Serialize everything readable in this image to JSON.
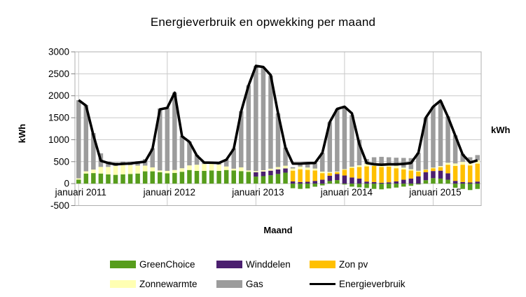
{
  "title": "Energieverbruik en opwekking per maand",
  "axes": {
    "y_left_label": "kWh",
    "y_right_label": "kWh",
    "x_label": "Maand",
    "y_ticks": [
      3000,
      2500,
      2000,
      1500,
      1000,
      500,
      0,
      -500
    ],
    "y_min": -500,
    "y_max": 3000,
    "x_tick_labels": [
      "januari 2011",
      "januari 2012",
      "januari 2013",
      "januari 2014",
      "januari 2015"
    ],
    "x_tick_month_index": [
      0,
      12,
      24,
      36,
      48
    ]
  },
  "colors": {
    "greenchoice": "#579D1C",
    "winddelen": "#4B1F6F",
    "zon_pv": "#FFC000",
    "zonnewarmte": "#FFFFB3",
    "gas": "#9C9C9C",
    "energieverbruik": "#000000",
    "gridline": "#C9C9C9",
    "plot_border": "#AFAFAF",
    "tick": "#808080"
  },
  "legend": {
    "rows": [
      [
        {
          "label": "GreenChoice",
          "color": "#579D1C"
        },
        {
          "label": "Winddelen",
          "color": "#4B1F6F"
        },
        {
          "label": "Zon pv",
          "color": "#FFC000"
        }
      ],
      [
        {
          "label": "Zonnewarmte",
          "color": "#FFFFB3"
        },
        {
          "label": "Gas",
          "color": "#9C9C9C"
        },
        {
          "label": "Energieverbruik",
          "color": "#000000"
        }
      ]
    ]
  },
  "chart_data": {
    "type": "bar",
    "subtype": "stacked-bars-with-line-overlay",
    "title": "Energieverbruik en opwekking per maand",
    "xlabel": "Maand",
    "ylabel": "kWh",
    "ylim": [
      -500,
      3000
    ],
    "grid": true,
    "legend_position": "bottom",
    "categories": [
      "2011-01",
      "2011-02",
      "2011-03",
      "2011-04",
      "2011-05",
      "2011-06",
      "2011-07",
      "2011-08",
      "2011-09",
      "2011-10",
      "2011-11",
      "2011-12",
      "2012-01",
      "2012-02",
      "2012-03",
      "2012-04",
      "2012-05",
      "2012-06",
      "2012-07",
      "2012-08",
      "2012-09",
      "2012-10",
      "2012-11",
      "2012-12",
      "2013-01",
      "2013-02",
      "2013-03",
      "2013-04",
      "2013-05",
      "2013-06",
      "2013-07",
      "2013-08",
      "2013-09",
      "2013-10",
      "2013-11",
      "2013-12",
      "2014-01",
      "2014-02",
      "2014-03",
      "2014-04",
      "2014-05",
      "2014-06",
      "2014-07",
      "2014-08",
      "2014-09",
      "2014-10",
      "2014-11",
      "2014-12",
      "2015-01",
      "2015-02",
      "2015-03",
      "2015-04",
      "2015-05",
      "2015-06",
      "2015-07"
    ],
    "series": [
      {
        "name": "GreenChoice",
        "color": "#579D1C",
        "values": [
          90,
          230,
          240,
          230,
          210,
          200,
          210,
          220,
          230,
          280,
          280,
          260,
          235,
          245,
          270,
          310,
          290,
          290,
          300,
          290,
          310,
          300,
          285,
          270,
          160,
          170,
          190,
          220,
          250,
          -105,
          -120,
          -110,
          -70,
          -40,
          60,
          80,
          -20,
          -68,
          -84,
          -100,
          -120,
          -130,
          -110,
          -90,
          -68,
          -50,
          -20,
          78,
          125,
          115,
          89,
          -94,
          -121,
          -146,
          -121
        ]
      },
      {
        "name": "Winddelen",
        "color": "#4B1F6F",
        "values": [
          0,
          0,
          0,
          0,
          0,
          0,
          0,
          0,
          0,
          0,
          0,
          0,
          0,
          0,
          0,
          0,
          0,
          0,
          0,
          0,
          0,
          0,
          0,
          0,
          100,
          105,
          105,
          105,
          95,
          50,
          37,
          42,
          63,
          89,
          120,
          140,
          185,
          140,
          115,
          47,
          37,
          20,
          30,
          52,
          89,
          115,
          167,
          183,
          162,
          180,
          146,
          63,
          37,
          26,
          47
        ]
      },
      {
        "name": "Zon pv",
        "color": "#FFC000",
        "values": [
          0,
          0,
          0,
          0,
          0,
          0,
          0,
          0,
          0,
          0,
          0,
          0,
          0,
          0,
          0,
          0,
          0,
          0,
          0,
          0,
          0,
          0,
          0,
          0,
          0,
          0,
          0,
          0,
          0,
          245,
          290,
          270,
          235,
          150,
          60,
          40,
          130,
          220,
          262,
          345,
          365,
          357,
          355,
          298,
          236,
          183,
          105,
          52,
          63,
          80,
          195,
          341,
          393,
          388,
          408
        ]
      },
      {
        "name": "Zonnewarmte",
        "color": "#FFFFB3",
        "values": [
          30,
          50,
          80,
          150,
          170,
          200,
          220,
          200,
          180,
          130,
          90,
          40,
          55,
          65,
          80,
          105,
          140,
          155,
          155,
          140,
          80,
          40,
          85,
          30,
          25,
          30,
          45,
          52,
          63,
          50,
          60,
          55,
          45,
          35,
          25,
          15,
          15,
          25,
          40,
          55,
          65,
          70,
          65,
          55,
          40,
          30,
          20,
          10,
          15,
          25,
          45,
          55,
          65,
          70,
          75
        ]
      },
      {
        "name": "Gas",
        "color": "#9C9C9C",
        "values": [
          1780,
          1510,
          830,
          310,
          120,
          80,
          70,
          70,
          100,
          150,
          435,
          1410,
          1440,
          1765,
          735,
          545,
          225,
          55,
          25,
          45,
          165,
          460,
          1280,
          1940,
          2395,
          2345,
          2120,
          1223,
          412,
          30,
          63,
          83,
          127,
          426,
          1135,
          1425,
          1420,
          1175,
          583,
          113,
          133,
          163,
          150,
          185,
          220,
          252,
          408,
          1177,
          1385,
          1470,
          1055,
          641,
          185,
          116,
          120
        ]
      }
    ],
    "line_series": {
      "name": "Energieverbruik",
      "color": "#000000",
      "values": [
        1900,
        1775,
        1100,
        520,
        470,
        440,
        450,
        460,
        480,
        500,
        790,
        1690,
        1725,
        2070,
        1075,
        950,
        640,
        480,
        475,
        470,
        545,
        790,
        1640,
        2230,
        2680,
        2655,
        2470,
        1600,
        820,
        455,
        455,
        465,
        470,
        700,
        1400,
        1700,
        1750,
        1600,
        900,
        470,
        440,
        430,
        440,
        440,
        450,
        470,
        700,
        1500,
        1750,
        1890,
        1520,
        1090,
        660,
        480,
        530
      ]
    }
  }
}
